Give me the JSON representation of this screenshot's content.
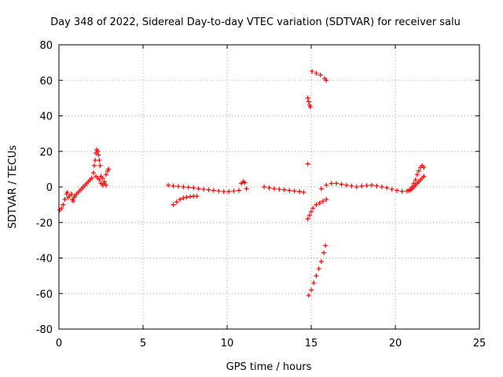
{
  "chart_data": {
    "type": "scatter",
    "title": "Day 348 of 2022, Sidereal Day-to-day VTEC variation (SDTVAR) for receiver salu",
    "xlabel": "GPS time / hours",
    "ylabel": "SDTVAR / TECUs",
    "xlim": [
      0,
      25
    ],
    "ylim": [
      -80,
      80
    ],
    "xticks": [
      0,
      5,
      10,
      15,
      20,
      25
    ],
    "yticks": [
      -80,
      -60,
      -40,
      -20,
      0,
      20,
      40,
      60,
      80
    ],
    "grid": true,
    "marker": "plus",
    "color": "#ff0000",
    "series": [
      {
        "values": [
          [
            0.05,
            -13
          ],
          [
            0.15,
            -12
          ],
          [
            0.25,
            -10
          ],
          [
            0.35,
            -7
          ],
          [
            0.45,
            -4
          ],
          [
            0.5,
            -3
          ],
          [
            0.55,
            -6
          ],
          [
            0.65,
            -5
          ],
          [
            0.75,
            -4
          ],
          [
            0.8,
            -7
          ],
          [
            0.85,
            -8
          ],
          [
            0.9,
            -6
          ],
          [
            0.95,
            -5
          ],
          [
            1.05,
            -4
          ],
          [
            1.15,
            -3
          ],
          [
            1.25,
            -2
          ],
          [
            1.35,
            -1
          ],
          [
            1.45,
            0
          ],
          [
            1.55,
            1
          ],
          [
            1.65,
            2
          ],
          [
            1.75,
            3
          ],
          [
            1.85,
            4
          ],
          [
            1.95,
            5
          ],
          [
            2.05,
            8
          ],
          [
            2.1,
            12
          ],
          [
            2.15,
            15
          ],
          [
            2.2,
            19
          ],
          [
            2.25,
            21
          ],
          [
            2.3,
            20
          ],
          [
            2.35,
            18
          ],
          [
            2.4,
            15
          ],
          [
            2.45,
            12
          ],
          [
            2.2,
            6
          ],
          [
            2.3,
            5
          ],
          [
            2.4,
            4
          ],
          [
            2.5,
            2
          ],
          [
            2.6,
            1
          ],
          [
            2.7,
            3
          ],
          [
            2.8,
            7
          ],
          [
            2.9,
            9
          ],
          [
            2.95,
            10
          ],
          [
            2.5,
            6
          ],
          [
            2.6,
            5
          ],
          [
            2.7,
            2
          ],
          [
            2.8,
            1
          ],
          [
            6.5,
            1
          ],
          [
            6.8,
            0.5
          ],
          [
            7.1,
            0.3
          ],
          [
            7.4,
            0
          ],
          [
            7.7,
            -0.2
          ],
          [
            8.0,
            -0.5
          ],
          [
            8.3,
            -1
          ],
          [
            8.6,
            -1.3
          ],
          [
            8.9,
            -1.6
          ],
          [
            9.2,
            -2
          ],
          [
            9.5,
            -2.3
          ],
          [
            9.8,
            -2.6
          ],
          [
            10.1,
            -2.6
          ],
          [
            10.4,
            -2.3
          ],
          [
            10.7,
            -2
          ],
          [
            10.85,
            2
          ],
          [
            10.95,
            3
          ],
          [
            11.05,
            2.5
          ],
          [
            11.15,
            -1
          ],
          [
            6.8,
            -10
          ],
          [
            7.0,
            -8.5
          ],
          [
            7.2,
            -7
          ],
          [
            7.4,
            -6.2
          ],
          [
            7.6,
            -5.8
          ],
          [
            7.8,
            -5.5
          ],
          [
            8.0,
            -5.2
          ],
          [
            8.2,
            -5.2
          ],
          [
            12.2,
            0
          ],
          [
            12.5,
            -0.5
          ],
          [
            12.8,
            -1
          ],
          [
            13.1,
            -1.3
          ],
          [
            13.4,
            -1.6
          ],
          [
            13.7,
            -2
          ],
          [
            14.0,
            -2.3
          ],
          [
            14.3,
            -2.6
          ],
          [
            14.55,
            -3
          ],
          [
            14.8,
            13
          ],
          [
            14.8,
            50
          ],
          [
            14.85,
            48
          ],
          [
            14.9,
            46
          ],
          [
            14.95,
            45
          ],
          [
            15.05,
            65
          ],
          [
            15.3,
            64
          ],
          [
            15.55,
            63
          ],
          [
            15.8,
            61
          ],
          [
            15.9,
            60
          ],
          [
            14.8,
            -18
          ],
          [
            14.9,
            -16
          ],
          [
            15.0,
            -14
          ],
          [
            15.1,
            -12
          ],
          [
            15.3,
            -10
          ],
          [
            15.5,
            -9
          ],
          [
            15.7,
            -8
          ],
          [
            15.9,
            -7
          ],
          [
            14.85,
            -61
          ],
          [
            15.0,
            -58
          ],
          [
            15.15,
            -54
          ],
          [
            15.3,
            -50
          ],
          [
            15.45,
            -46
          ],
          [
            15.6,
            -42
          ],
          [
            15.75,
            -37
          ],
          [
            15.85,
            -33
          ],
          [
            15.6,
            -1
          ],
          [
            15.9,
            1
          ],
          [
            16.2,
            2
          ],
          [
            16.5,
            2
          ],
          [
            16.8,
            1.5
          ],
          [
            17.1,
            1
          ],
          [
            17.4,
            0.5
          ],
          [
            17.7,
            0
          ],
          [
            18.0,
            0.5
          ],
          [
            18.3,
            0.8
          ],
          [
            18.6,
            1
          ],
          [
            18.9,
            0.5
          ],
          [
            19.2,
            0
          ],
          [
            19.5,
            -0.5
          ],
          [
            19.8,
            -1.3
          ],
          [
            20.1,
            -2
          ],
          [
            20.4,
            -2.5
          ],
          [
            20.7,
            -2.3
          ],
          [
            20.9,
            -1.6
          ],
          [
            21.0,
            0
          ],
          [
            21.1,
            2
          ],
          [
            21.2,
            4
          ],
          [
            21.3,
            7
          ],
          [
            21.4,
            9
          ],
          [
            21.5,
            11
          ],
          [
            21.6,
            12
          ],
          [
            21.7,
            11
          ],
          [
            20.8,
            -2
          ],
          [
            20.9,
            -1.6
          ],
          [
            21.0,
            -1
          ],
          [
            21.1,
            0
          ],
          [
            21.2,
            1
          ],
          [
            21.3,
            2
          ],
          [
            21.4,
            3
          ],
          [
            21.5,
            4
          ],
          [
            21.6,
            5
          ],
          [
            21.7,
            6
          ]
        ]
      }
    ]
  }
}
